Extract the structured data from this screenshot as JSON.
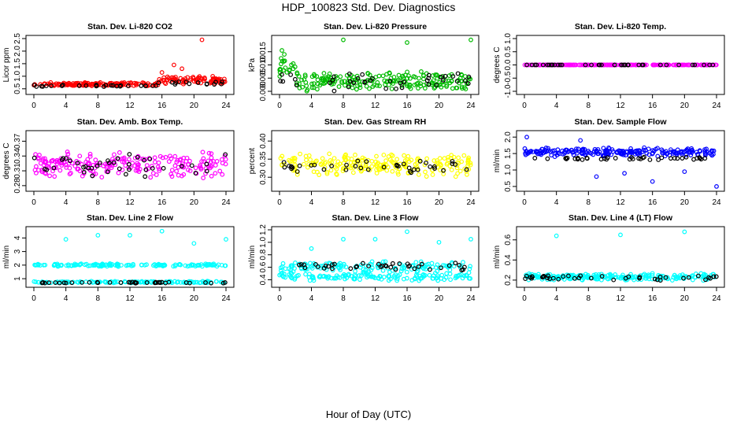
{
  "figure": {
    "title": "HDP_100823  Std. Dev. Diagnostics",
    "xlabel": "Hour of Day (UTC)"
  },
  "chart_data": [
    {
      "type": "scatter",
      "title": "Stan. Dev. Li-820 CO2",
      "ylabel": "Licor ppm",
      "xlim": [
        0,
        24
      ],
      "ylim": [
        0.4,
        2.5
      ],
      "xticks": [
        0,
        4,
        8,
        12,
        16,
        20,
        24
      ],
      "yticks": [
        0.5,
        1.0,
        1.5,
        2.0,
        2.5
      ],
      "ytick_labels": [
        "0.5",
        "1.0",
        "1.5",
        "2.0",
        "2.5"
      ],
      "series": [
        {
          "color": "#ff0000",
          "outliers": [
            [
              21,
              2.45
            ],
            [
              17.5,
              1.45
            ],
            [
              18.5,
              1.3
            ],
            [
              16,
              1.15
            ]
          ],
          "base_segments": [
            {
              "x": [
                0,
                15.5
              ],
              "center": 0.68,
              "spread": 0.08
            },
            {
              "x": [
                15.5,
                24
              ],
              "center": 0.85,
              "spread": 0.18
            }
          ]
        },
        {
          "color": "#000000",
          "base_segments": [
            {
              "x": [
                0,
                15.5
              ],
              "center": 0.62,
              "spread": 0.05
            },
            {
              "x": [
                15.5,
                24
              ],
              "center": 0.72,
              "spread": 0.08
            }
          ]
        }
      ]
    },
    {
      "type": "scatter",
      "title": "Stan. Dev. Li-820 Pressure",
      "ylabel": "kPa",
      "xlim": [
        0,
        24
      ],
      "ylim": [
        0,
        0.02
      ],
      "xticks": [
        0,
        4,
        8,
        12,
        16,
        20,
        24
      ],
      "yticks": [
        0,
        0.005,
        0.01,
        0.015
      ],
      "ytick_labels": [
        "0.000",
        "0.005",
        "0.010",
        "0.015"
      ],
      "series": [
        {
          "color": "#00bb00",
          "outliers": [
            [
              8,
              0.0195
            ],
            [
              16,
              0.0185
            ],
            [
              24,
              0.0195
            ],
            [
              0.3,
              0.0155
            ],
            [
              0.6,
              0.014
            ],
            [
              0.2,
              0.0125
            ]
          ],
          "base_segments": [
            {
              "x": [
                0,
                2
              ],
              "center": 0.009,
              "spread": 0.004
            },
            {
              "x": [
                2,
                24
              ],
              "center": 0.004,
              "spread": 0.004
            }
          ]
        },
        {
          "color": "#000000",
          "base_segments": [
            {
              "x": [
                0,
                24
              ],
              "center": 0.004,
              "spread": 0.004
            }
          ]
        }
      ]
    },
    {
      "type": "scatter",
      "title": "Stan. Dev. Li-820 Temp.",
      "ylabel": "degrees C",
      "xlim": [
        0,
        24
      ],
      "ylim": [
        -1,
        1
      ],
      "xticks": [
        0,
        4,
        8,
        12,
        16,
        20,
        24
      ],
      "yticks": [
        -1,
        -0.5,
        0,
        0.5,
        1
      ],
      "ytick_labels": [
        "-1.0",
        "-0.5",
        "0.0",
        "0.5",
        "1.0"
      ],
      "series": [
        {
          "color": "#ff00ff",
          "base_segments": [
            {
              "x": [
                0,
                24
              ],
              "center": 0,
              "spread": 0
            }
          ]
        },
        {
          "color": "#000000",
          "base_segments": [
            {
              "x": [
                0,
                24
              ],
              "center": 0,
              "spread": 0
            }
          ]
        }
      ]
    },
    {
      "type": "scatter",
      "title": "Stan. Dev. Amb. Box Temp.",
      "ylabel": "degrees C",
      "xlim": [
        0,
        24
      ],
      "ylim": [
        0.275,
        0.385
      ],
      "xticks": [
        0,
        4,
        8,
        12,
        16,
        20,
        24
      ],
      "yticks": [
        0.28,
        0.31,
        0.34,
        0.37
      ],
      "ytick_labels": [
        "0.28",
        "0.31",
        "0.34",
        "0.37"
      ],
      "series": [
        {
          "color": "#ff00ff",
          "base_segments": [
            {
              "x": [
                0,
                24
              ],
              "center": 0.322,
              "spread": 0.03
            }
          ]
        },
        {
          "color": "#000000",
          "base_segments": [
            {
              "x": [
                0,
                24
              ],
              "center": 0.32,
              "spread": 0.028
            }
          ]
        }
      ]
    },
    {
      "type": "scatter",
      "title": "Stan. Dev. Gas Stream RH",
      "ylabel": "percent",
      "xlim": [
        0,
        24
      ],
      "ylim": [
        0.27,
        0.42
      ],
      "xticks": [
        0,
        4,
        8,
        12,
        16,
        20,
        24
      ],
      "yticks": [
        0.3,
        0.35,
        0.4
      ],
      "ytick_labels": [
        "0.30",
        "0.35",
        "0.40"
      ],
      "series": [
        {
          "color": "#ffff00",
          "base_segments": [
            {
              "x": [
                0,
                24
              ],
              "center": 0.335,
              "spread": 0.035
            }
          ]
        },
        {
          "color": "#000000",
          "base_segments": [
            {
              "x": [
                0,
                24
              ],
              "center": 0.33,
              "spread": 0.02
            }
          ]
        }
      ]
    },
    {
      "type": "scatter",
      "title": "Stan. Dev. Sample Flow",
      "ylabel": "ml/min",
      "xlim": [
        0,
        24
      ],
      "ylim": [
        0.45,
        2.1
      ],
      "xticks": [
        0,
        4,
        8,
        12,
        16,
        20,
        24
      ],
      "yticks": [
        0.5,
        1.0,
        1.5,
        2.0
      ],
      "ytick_labels": [
        "0.5",
        "1.0",
        "1.5",
        "2.0"
      ],
      "series": [
        {
          "color": "#0000ff",
          "outliers": [
            [
              0.3,
              2.0
            ],
            [
              24,
              0.5
            ],
            [
              16,
              0.65
            ],
            [
              7,
              1.9
            ],
            [
              9,
              0.8
            ],
            [
              12.5,
              0.9
            ],
            [
              20,
              0.95
            ]
          ],
          "base_segments": [
            {
              "x": [
                0,
                24
              ],
              "center": 1.55,
              "spread": 0.15
            }
          ]
        },
        {
          "color": "#000000",
          "base_segments": [
            {
              "x": [
                0,
                24
              ],
              "center": 1.35,
              "spread": 0.05
            }
          ]
        }
      ]
    },
    {
      "type": "scatter",
      "title": "Stan. Dev. Line 2 Flow",
      "ylabel": "ml/min",
      "xlim": [
        0,
        24
      ],
      "ylim": [
        0.6,
        4.6
      ],
      "xticks": [
        0,
        4,
        8,
        12,
        16,
        20,
        24
      ],
      "yticks": [
        1,
        2,
        3,
        4
      ],
      "ytick_labels": [
        "1",
        "2",
        "3",
        "4"
      ],
      "series": [
        {
          "color": "#00ffff",
          "outliers": [
            [
              4,
              3.9
            ],
            [
              8,
              4.2
            ],
            [
              12,
              4.2
            ],
            [
              16,
              4.5
            ],
            [
              20,
              3.6
            ],
            [
              24,
              3.9
            ]
          ],
          "base_segments": [
            {
              "x": [
                0,
                24
              ],
              "center": 2.0,
              "spread": 0.12
            },
            {
              "x": [
                0,
                24
              ],
              "center": 0.75,
              "spread": 0.08
            }
          ]
        },
        {
          "color": "#000000",
          "base_segments": [
            {
              "x": [
                0,
                24
              ],
              "center": 0.72,
              "spread": 0.06
            }
          ]
        }
      ]
    },
    {
      "type": "scatter",
      "title": "Stan. Dev. Line 3 Flow",
      "ylabel": "ml/min",
      "xlim": [
        0,
        24
      ],
      "ylim": [
        0.33,
        1.2
      ],
      "xticks": [
        0,
        4,
        8,
        12,
        16,
        20,
        24
      ],
      "yticks": [
        0.4,
        0.6,
        0.8,
        1.0,
        1.2
      ],
      "ytick_labels": [
        "0.4",
        "0.6",
        "0.8",
        "1.0",
        "1.2"
      ],
      "series": [
        {
          "color": "#00ffff",
          "outliers": [
            [
              4,
              0.9
            ],
            [
              8,
              1.05
            ],
            [
              12,
              1.05
            ],
            [
              16,
              1.17
            ],
            [
              20,
              1.0
            ],
            [
              24,
              1.05
            ]
          ],
          "base_segments": [
            {
              "x": [
                0,
                24
              ],
              "center": 0.6,
              "spread": 0.1
            },
            {
              "x": [
                0,
                24
              ],
              "center": 0.45,
              "spread": 0.07
            }
          ]
        },
        {
          "color": "#000000",
          "base_segments": [
            {
              "x": [
                0,
                24
              ],
              "center": 0.62,
              "spread": 0.07
            }
          ]
        }
      ]
    },
    {
      "type": "scatter",
      "title": "Stan. Dev. Line 4 (LT) Flow",
      "ylabel": "ml/min",
      "xlim": [
        0,
        24
      ],
      "ylim": [
        0.16,
        0.7
      ],
      "xticks": [
        0,
        4,
        8,
        12,
        16,
        20,
        24
      ],
      "yticks": [
        0.2,
        0.4,
        0.6
      ],
      "ytick_labels": [
        "0.2",
        "0.4",
        "0.6"
      ],
      "series": [
        {
          "color": "#00ffff",
          "outliers": [
            [
              4,
              0.64
            ],
            [
              12,
              0.65
            ],
            [
              20,
              0.68
            ]
          ],
          "base_segments": [
            {
              "x": [
                0,
                24
              ],
              "center": 0.23,
              "spread": 0.04
            }
          ]
        },
        {
          "color": "#000000",
          "base_segments": [
            {
              "x": [
                0,
                24
              ],
              "center": 0.22,
              "spread": 0.03
            }
          ]
        }
      ]
    }
  ]
}
